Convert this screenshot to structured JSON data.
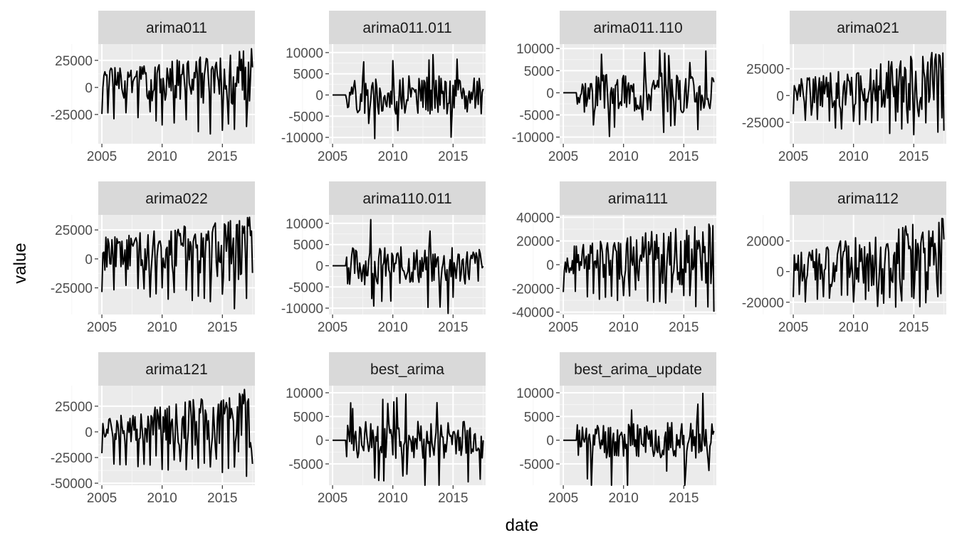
{
  "chart_data": {
    "type": "line",
    "layout": "facet_wrap",
    "xlabel": "date",
    "ylabel": "value",
    "grid": true,
    "legend": "none",
    "colors": {
      "panel_bg": "#ebebeb",
      "strip_bg": "#d9d9d9",
      "grid_major": "#ffffff",
      "line": "#000000",
      "tick_text": "#4d4d4d",
      "axis_title": "#000000"
    },
    "x_ticks": [
      2005,
      2010,
      2015
    ],
    "xlim": [
      2004.7,
      2017.7
    ],
    "panels": [
      {
        "name": "arima011",
        "ylim": [
          -52000,
          40000
        ],
        "y_ticks": [
          -25000,
          0,
          25000
        ],
        "y_tick_labels": [
          "-25000",
          "0",
          "25000"
        ],
        "shape": {
          "kind": "seasonal",
          "amp_start": 16000,
          "amp_end": 35000,
          "trough_start": -30000,
          "trough_end": -48000,
          "flat_until": 2005.0,
          "seed": 1
        }
      },
      {
        "name": "arima011.011",
        "ylim": [
          -11500,
          12000
        ],
        "y_ticks": [
          -10000,
          -5000,
          0,
          5000,
          10000
        ],
        "y_tick_labels": [
          "-10000",
          "-5000",
          "0",
          "5000",
          "10000"
        ],
        "shape": {
          "kind": "irregular",
          "amp": 4500,
          "spike": 11000,
          "flat_until": 2006.1,
          "seed": 2
        }
      },
      {
        "name": "arima011.110",
        "ylim": [
          -11500,
          11000
        ],
        "y_ticks": [
          -10000,
          -5000,
          0,
          5000,
          10000
        ],
        "y_tick_labels": [
          "-10000",
          "-5000",
          "0",
          "5000",
          "10000"
        ],
        "shape": {
          "kind": "irregular",
          "amp": 4500,
          "spike": 10000,
          "flat_until": 2006.1,
          "seed": 3
        }
      },
      {
        "name": "arima021",
        "ylim": [
          -45000,
          48000
        ],
        "y_ticks": [
          -25000,
          0,
          25000
        ],
        "y_tick_labels": [
          "-25000",
          "0",
          "25000"
        ],
        "shape": {
          "kind": "seasonal",
          "amp_start": 15000,
          "amp_end": 42000,
          "trough_start": -28000,
          "trough_end": -42000,
          "flat_until": 2005.0,
          "seed": 4
        }
      },
      {
        "name": "arima022",
        "ylim": [
          -48000,
          38000
        ],
        "y_ticks": [
          -25000,
          0,
          25000
        ],
        "y_tick_labels": [
          "-25000",
          "0",
          "25000"
        ],
        "shape": {
          "kind": "seasonal",
          "amp_start": 18000,
          "amp_end": 36000,
          "trough_start": -30000,
          "trough_end": -45000,
          "flat_until": 2005.0,
          "seed": 5
        }
      },
      {
        "name": "arima110.011",
        "ylim": [
          -11500,
          12000
        ],
        "y_ticks": [
          -10000,
          -5000,
          0,
          5000,
          10000
        ],
        "y_tick_labels": [
          "-10000",
          "-5000",
          "0",
          "5000",
          "10000"
        ],
        "shape": {
          "kind": "irregular",
          "amp": 4500,
          "spike": 11500,
          "flat_until": 2006.1,
          "seed": 6
        }
      },
      {
        "name": "arima111",
        "ylim": [
          -42000,
          42000
        ],
        "y_ticks": [
          -40000,
          -20000,
          0,
          20000,
          40000
        ],
        "y_tick_labels": [
          "-40000",
          "-20000",
          "0",
          "20000",
          "40000"
        ],
        "shape": {
          "kind": "seasonal",
          "amp_start": 14000,
          "amp_end": 38000,
          "trough_start": -28000,
          "trough_end": -40000,
          "flat_until": 2005.0,
          "seed": 7
        }
      },
      {
        "name": "arima112",
        "ylim": [
          -28000,
          37000
        ],
        "y_ticks": [
          -20000,
          0,
          20000
        ],
        "y_tick_labels": [
          "-20000",
          "0",
          "20000"
        ],
        "shape": {
          "kind": "seasonal",
          "amp_start": 12000,
          "amp_end": 36000,
          "trough_start": -22000,
          "trough_end": -25000,
          "flat_until": 2005.0,
          "seed": 8
        }
      },
      {
        "name": "arima121",
        "ylim": [
          -52000,
          45000
        ],
        "y_ticks": [
          -50000,
          -25000,
          0,
          25000
        ],
        "y_tick_labels": [
          "-50000",
          "-25000",
          "0",
          "25000"
        ],
        "shape": {
          "kind": "seasonal",
          "amp_start": 14000,
          "amp_end": 42000,
          "trough_start": -30000,
          "trough_end": -48000,
          "flat_until": 2005.0,
          "seed": 9
        }
      },
      {
        "name": "best_arima",
        "ylim": [
          -9500,
          11500
        ],
        "y_ticks": [
          -5000,
          0,
          5000,
          10000
        ],
        "y_tick_labels": [
          "-5000",
          "0",
          "5000",
          "10000"
        ],
        "shape": {
          "kind": "irregular",
          "amp": 4000,
          "spike": 10500,
          "flat_until": 2006.1,
          "seed": 10
        }
      },
      {
        "name": "best_arima_update",
        "ylim": [
          -9500,
          11500
        ],
        "y_ticks": [
          -5000,
          0,
          5000,
          10000
        ],
        "y_tick_labels": [
          "-5000",
          "0",
          "5000",
          "10000"
        ],
        "shape": {
          "kind": "irregular",
          "amp": 4000,
          "spike": 10500,
          "flat_until": 2006.1,
          "seed": 11
        }
      }
    ]
  }
}
